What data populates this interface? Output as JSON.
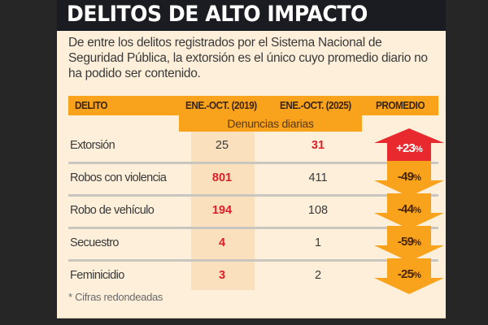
{
  "title": "DELITOS DE ALTO IMPACTO",
  "intro": "De entre los delitos registrados por el Sistema Nacional de Seguridad Pública, la extorsión es el único cuyo promedio diario no ha podido ser contenido.",
  "footnote": "* Cifras redondeadas",
  "colors": {
    "header_band": "#f9a21c",
    "up_arrow": "#e82a2f",
    "down_arrow": "#f9a21c",
    "highlight_text": "#d8202a",
    "panel": "#fdefd9",
    "title_bar": "#1a1c22"
  },
  "chart_data": {
    "type": "table",
    "title": "DELITOS DE ALTO IMPACTO",
    "subtitle": "Denuncias diarias",
    "columns": [
      "DELITO",
      "ENE.-OCT. (2019)",
      "ENE.-OCT. (2025)",
      "PROMEDIO"
    ],
    "rows": [
      {
        "delito": "Extorsión",
        "y2019": "25",
        "y2025": "31",
        "promedio": "+23",
        "direction": "up",
        "highlight": "2025"
      },
      {
        "delito": "Robos con violencia",
        "y2019": "801",
        "y2025": "411",
        "promedio": "-49",
        "direction": "down",
        "highlight": "2019"
      },
      {
        "delito": "Robo de vehículo",
        "y2019": "194",
        "y2025": "108",
        "promedio": "-44",
        "direction": "down",
        "highlight": "2019"
      },
      {
        "delito": "Secuestro",
        "y2019": "4",
        "y2025": "1",
        "promedio": "-59",
        "direction": "down",
        "highlight": "2019"
      },
      {
        "delito": "Feminicidio",
        "y2019": "3",
        "y2025": "2",
        "promedio": "-25",
        "direction": "down",
        "highlight": "2019"
      }
    ],
    "percent_sign": "%"
  }
}
